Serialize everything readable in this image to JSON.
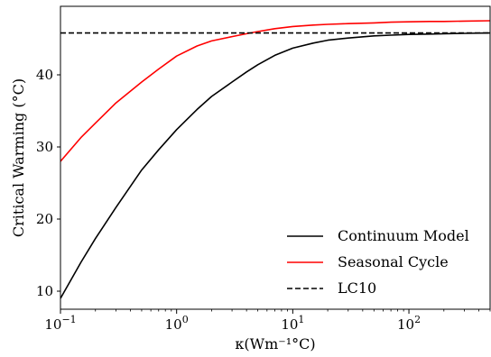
{
  "chart_data": {
    "type": "line",
    "title": "",
    "xlabel": "κ(Wm⁻¹°C)",
    "ylabel": "Critical Warming (°C)",
    "xscale": "log",
    "xlim": [
      0.1,
      500
    ],
    "ylim": [
      7.5,
      49.5
    ],
    "xticks": [
      {
        "value": 0.1,
        "mantissa": "10",
        "exp": "−1"
      },
      {
        "value": 1,
        "mantissa": "10",
        "exp": "0"
      },
      {
        "value": 10,
        "mantissa": "10",
        "exp": "1"
      },
      {
        "value": 100,
        "mantissa": "10",
        "exp": "2"
      }
    ],
    "yticks": [
      10,
      20,
      30,
      40
    ],
    "grid": false,
    "legend_position": "lower-right",
    "series": [
      {
        "name": "Continuum Model",
        "color": "#000000",
        "style": "solid",
        "x": [
          0.1,
          0.15,
          0.2,
          0.3,
          0.5,
          0.7,
          1,
          1.5,
          2,
          3,
          4,
          5,
          7,
          10,
          15,
          20,
          30,
          50,
          70,
          100,
          150,
          200,
          300,
          500
        ],
        "y": [
          9.0,
          14.0,
          17.3,
          21.6,
          26.8,
          29.6,
          32.4,
          35.2,
          37.0,
          39.0,
          40.4,
          41.4,
          42.7,
          43.7,
          44.4,
          44.8,
          45.1,
          45.4,
          45.5,
          45.6,
          45.65,
          45.7,
          45.75,
          45.8
        ]
      },
      {
        "name": "Seasonal Cycle",
        "color": "#ff0000",
        "style": "solid",
        "x": [
          0.1,
          0.15,
          0.2,
          0.3,
          0.5,
          0.7,
          1,
          1.5,
          2,
          3,
          4,
          5,
          7,
          10,
          15,
          20,
          30,
          50,
          70,
          100,
          150,
          200,
          300,
          500
        ],
        "y": [
          28.0,
          31.3,
          33.3,
          36.1,
          39.0,
          40.8,
          42.6,
          44.0,
          44.7,
          45.3,
          45.7,
          46.0,
          46.4,
          46.7,
          46.9,
          47.0,
          47.1,
          47.2,
          47.3,
          47.35,
          47.4,
          47.4,
          47.45,
          47.5
        ]
      },
      {
        "name": "LC10",
        "color": "#000000",
        "style": "dashed",
        "x": [
          0.1,
          500
        ],
        "y": [
          45.8,
          45.8
        ]
      }
    ]
  }
}
